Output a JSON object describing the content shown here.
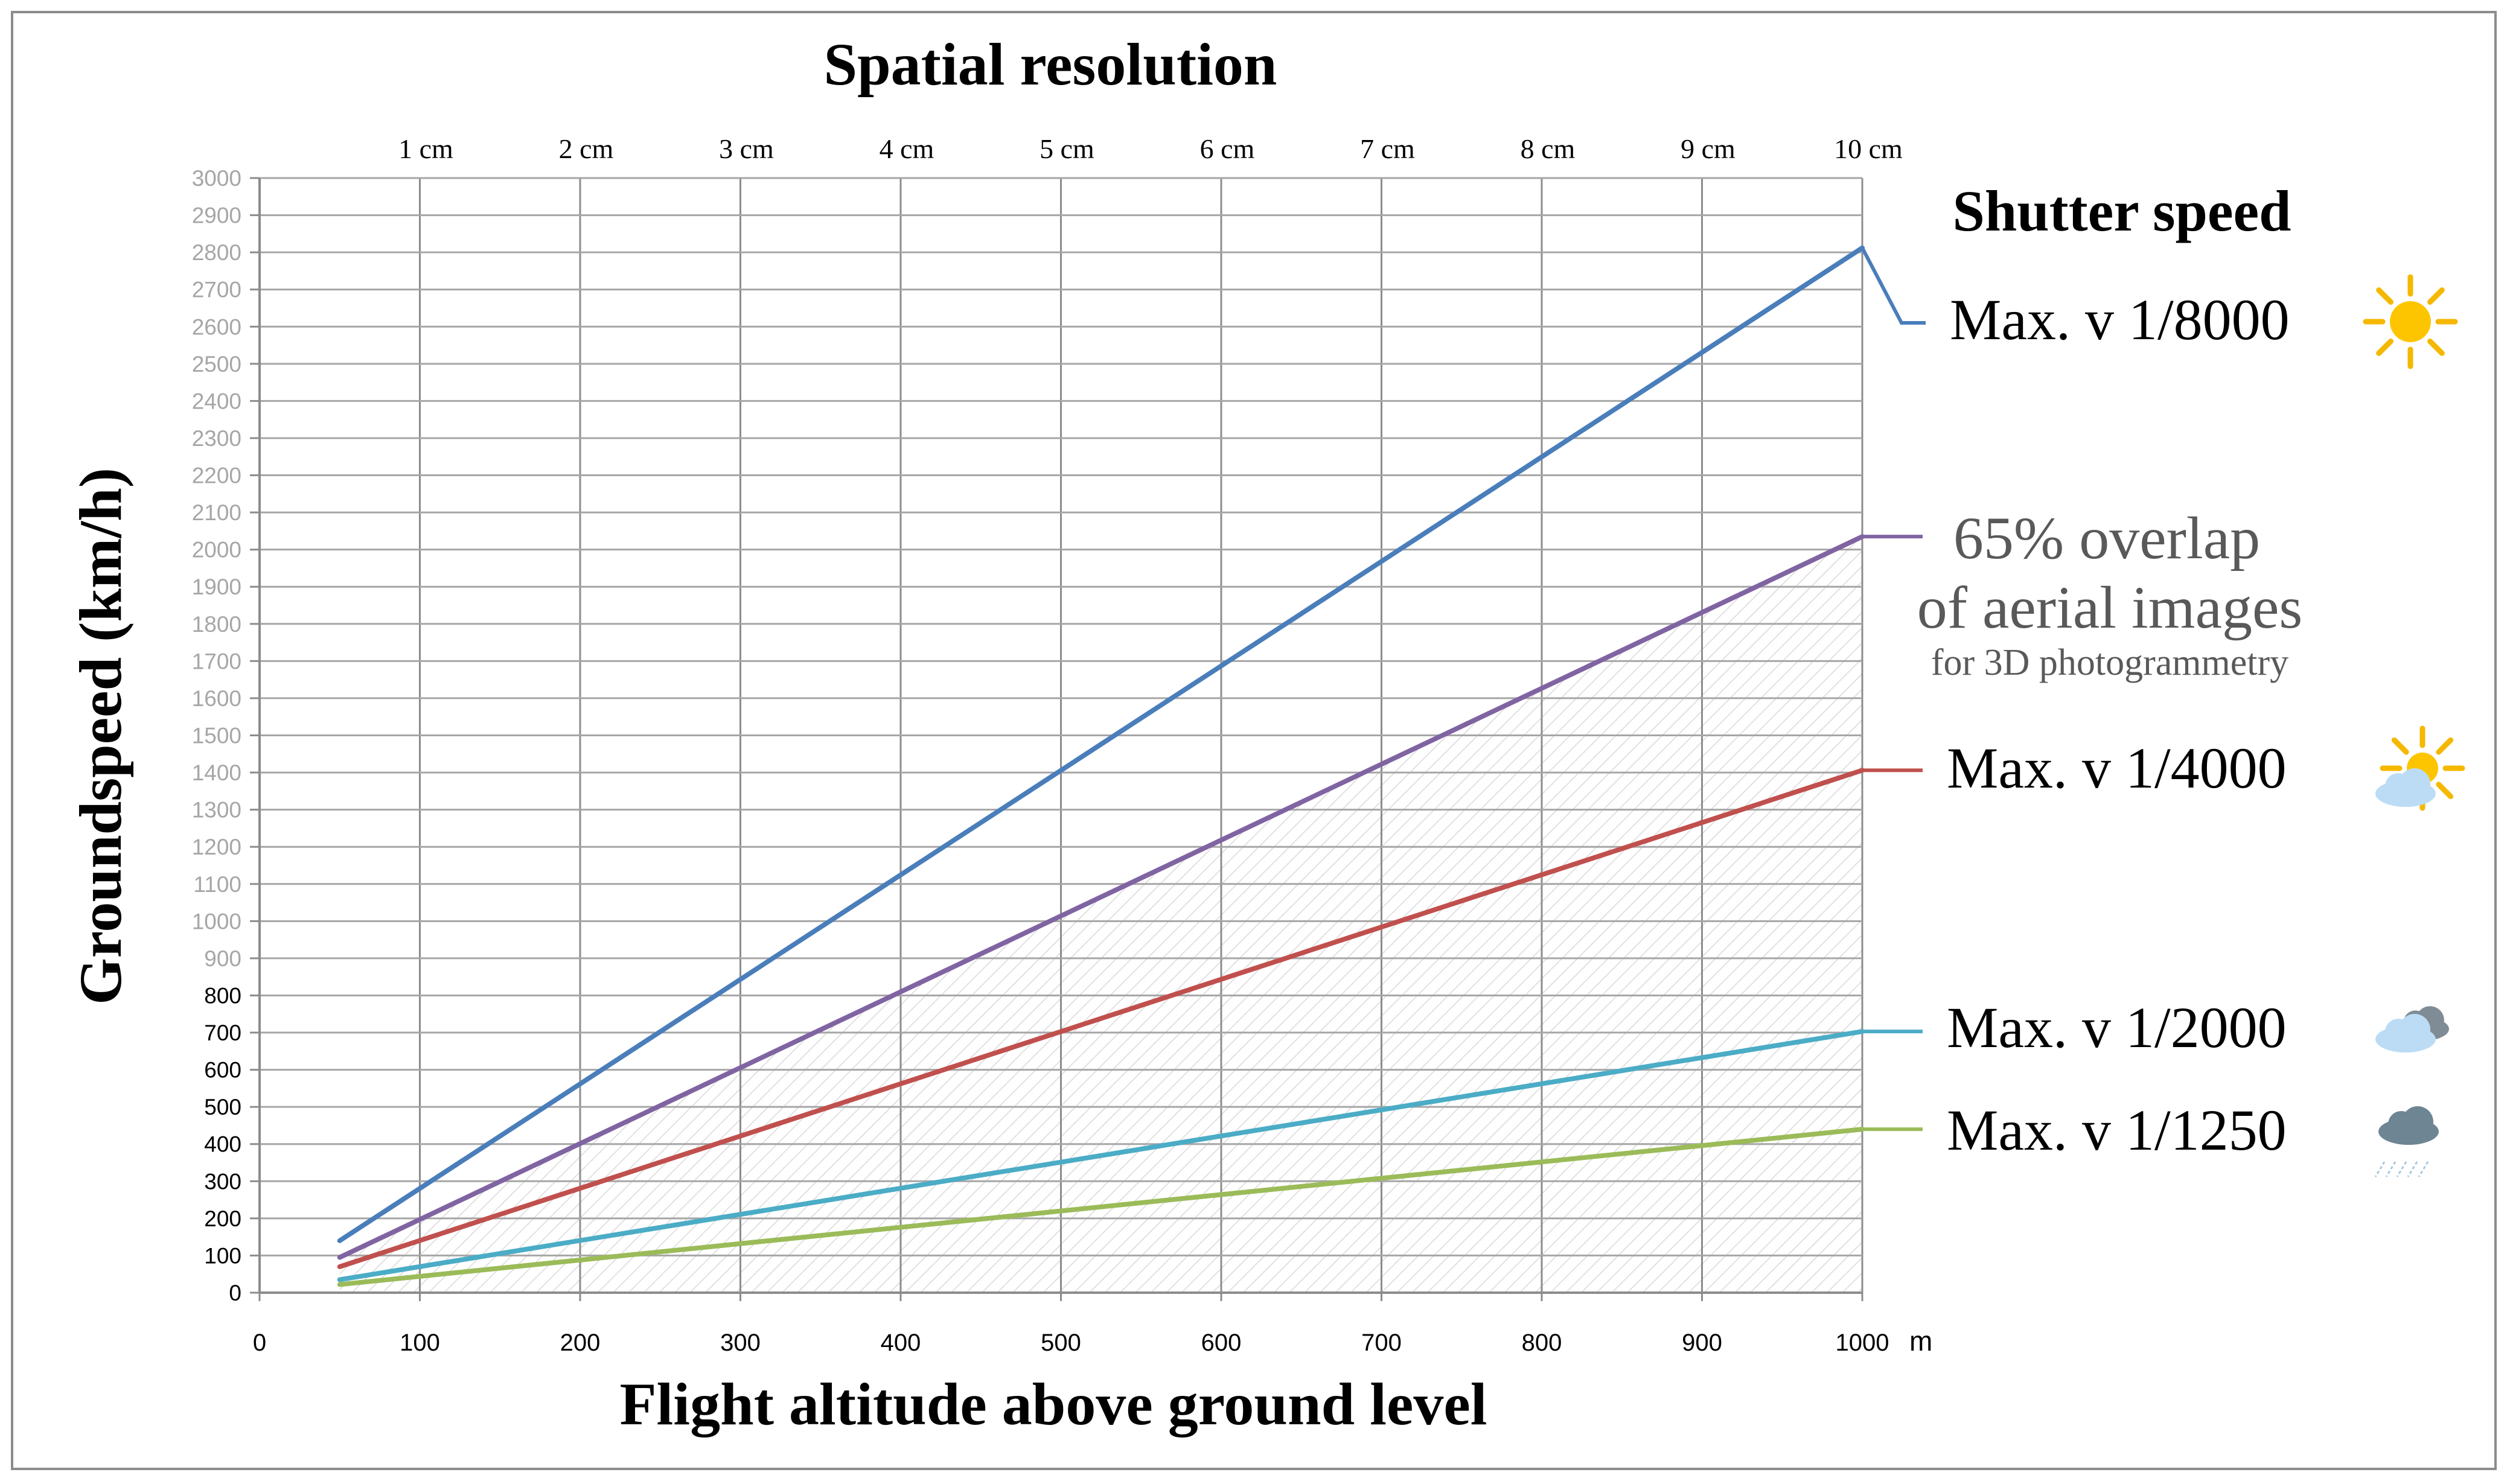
{
  "chart_data": {
    "type": "line",
    "title": "Spatial resolution",
    "xlabel": "Flight altitude above ground level",
    "ylabel": "Groundspeed (km/h)",
    "x_unit": "m",
    "legend_title": "Shutter speed",
    "xlim": [
      0,
      1000
    ],
    "ylim": [
      0,
      3000
    ],
    "x_ticks": [
      "0",
      "100",
      "200",
      "300",
      "400",
      "500",
      "600",
      "700",
      "800",
      "900",
      "1000"
    ],
    "y_ticks": [
      "0",
      "100",
      "200",
      "300",
      "400",
      "500",
      "600",
      "700",
      "800",
      "900",
      "1000",
      "1100",
      "1200",
      "1300",
      "1400",
      "1500",
      "1600",
      "1700",
      "1800",
      "1900",
      "2000",
      "2100",
      "2200",
      "2300",
      "2400",
      "2500",
      "2600",
      "2700",
      "2800",
      "2900",
      "3000"
    ],
    "resolution_ticks": [
      "1 cm",
      "2 cm",
      "3 cm",
      "4 cm",
      "5 cm",
      "6 cm",
      "7 cm",
      "8 cm",
      "9 cm",
      "10 cm"
    ],
    "series": [
      {
        "name": "Max. v 1/8000",
        "color": "#4a7ebb",
        "x": [
          50,
          1000
        ],
        "y": [
          140,
          2812
        ],
        "icon": "sun-icon"
      },
      {
        "name": "65% overlap of aerial images for 3D photogrammetry",
        "label_lines": [
          "65% overlap",
          "of aerial images",
          "for 3D photogrammetry"
        ],
        "color": "#8064a2",
        "x": [
          50,
          1000
        ],
        "y": [
          95,
          2035
        ],
        "icon": ""
      },
      {
        "name": "Max. v 1/4000",
        "color": "#c0504d",
        "x": [
          50,
          1000
        ],
        "y": [
          70,
          1406
        ],
        "icon": "sun-cloud-icon"
      },
      {
        "name": "Max. v 1/2000",
        "color": "#4bacc6",
        "x": [
          50,
          1000
        ],
        "y": [
          35,
          703
        ],
        "icon": "clouds-icon"
      },
      {
        "name": "Max. v 1/1250",
        "color": "#9bbb59",
        "x": [
          50,
          1000
        ],
        "y": [
          22,
          440
        ],
        "icon": "rain-cloud-icon"
      }
    ],
    "shaded_region": "below 65% overlap line (hatched)",
    "grid": true
  }
}
